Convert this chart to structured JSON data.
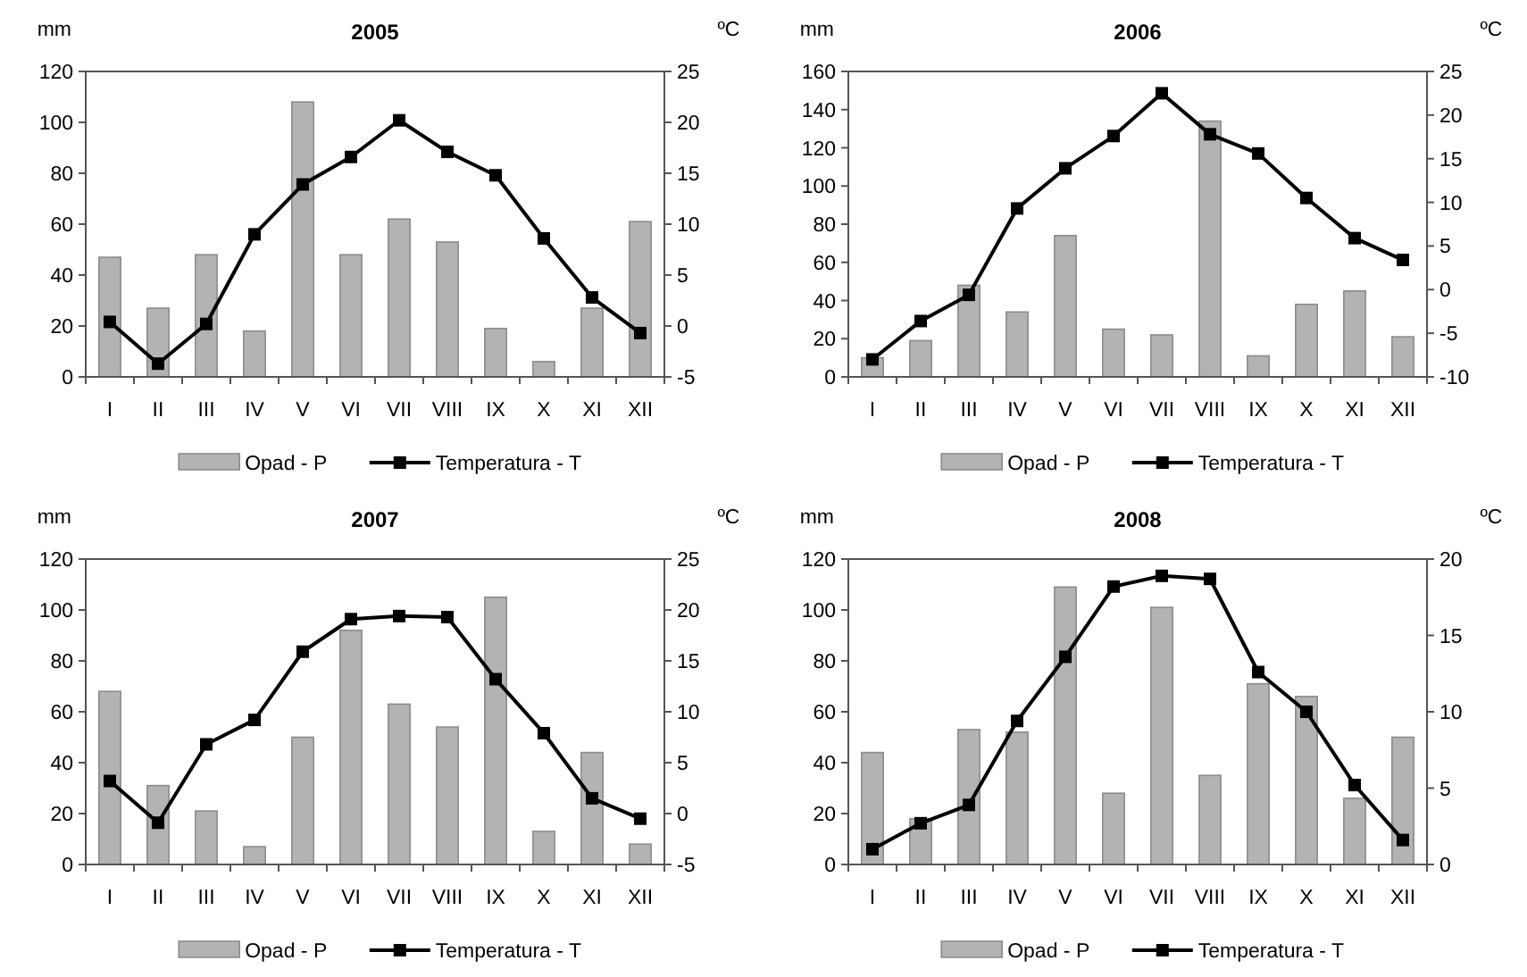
{
  "chart_data": [
    {
      "type": "bar",
      "title": "2005",
      "ylabel": "mm",
      "y2label": "ºC",
      "categories": [
        "I",
        "II",
        "III",
        "IV",
        "V",
        "VI",
        "VII",
        "VIII",
        "IX",
        "X",
        "XI",
        "XII"
      ],
      "ylim": [
        0,
        120
      ],
      "yticks": [
        0,
        20,
        40,
        60,
        80,
        100,
        120
      ],
      "y2lim": [
        -5,
        25
      ],
      "y2ticks": [
        -5,
        0,
        5,
        10,
        15,
        20,
        25
      ],
      "legend": "bottom",
      "grid": false,
      "series": [
        {
          "name": "Opad - P",
          "color": "#b3b3b3",
          "values": [
            47,
            27,
            48,
            18,
            108,
            48,
            62,
            53,
            19,
            6,
            27,
            61
          ]
        },
        {
          "name": "Temperatura - T",
          "type": "line",
          "axis": "y2",
          "color": "#000000",
          "marker": "square",
          "values": [
            0.4,
            -3.7,
            0.2,
            9.0,
            13.9,
            16.6,
            20.2,
            17.1,
            14.8,
            8.6,
            2.8,
            -0.7
          ]
        }
      ]
    },
    {
      "type": "bar",
      "title": "2006",
      "ylabel": "mm",
      "y2label": "ºC",
      "categories": [
        "I",
        "II",
        "III",
        "IV",
        "V",
        "VI",
        "VII",
        "VIII",
        "IX",
        "X",
        "XI",
        "XII"
      ],
      "ylim": [
        0,
        160
      ],
      "yticks": [
        0,
        20,
        40,
        60,
        80,
        100,
        120,
        140,
        160
      ],
      "y2lim": [
        -10,
        25
      ],
      "y2ticks": [
        -10,
        -5,
        0,
        5,
        10,
        15,
        20,
        25
      ],
      "legend": "bottom",
      "grid": false,
      "series": [
        {
          "name": "Opad - P",
          "color": "#b3b3b3",
          "values": [
            10,
            19,
            48,
            34,
            74,
            25,
            22,
            134,
            11,
            38,
            45,
            21
          ]
        },
        {
          "name": "Temperatura - T",
          "type": "line",
          "axis": "y2",
          "color": "#000000",
          "marker": "square",
          "values": [
            -8.0,
            -3.6,
            -0.6,
            9.3,
            13.9,
            17.6,
            22.5,
            17.8,
            15.6,
            10.5,
            5.9,
            3.4
          ]
        }
      ]
    },
    {
      "type": "bar",
      "title": "2007",
      "ylabel": "mm",
      "y2label": "ºC",
      "categories": [
        "I",
        "II",
        "III",
        "IV",
        "V",
        "VI",
        "VII",
        "VIII",
        "IX",
        "X",
        "XI",
        "XII"
      ],
      "ylim": [
        0,
        120
      ],
      "yticks": [
        0,
        20,
        40,
        60,
        80,
        100,
        120
      ],
      "y2lim": [
        -5,
        25
      ],
      "y2ticks": [
        -5,
        0,
        5,
        10,
        15,
        20,
        25
      ],
      "legend": "bottom",
      "grid": false,
      "series": [
        {
          "name": "Opad - P",
          "color": "#b3b3b3",
          "values": [
            68,
            31,
            21,
            7,
            50,
            92,
            63,
            54,
            105,
            13,
            44,
            8
          ]
        },
        {
          "name": "Temperatura - T",
          "type": "line",
          "axis": "y2",
          "color": "#000000",
          "marker": "square",
          "values": [
            3.2,
            -0.9,
            6.8,
            9.2,
            15.9,
            19.1,
            19.4,
            19.3,
            13.2,
            7.9,
            1.5,
            -0.5
          ]
        }
      ]
    },
    {
      "type": "bar",
      "title": "2008",
      "ylabel": "mm",
      "y2label": "ºC",
      "categories": [
        "I",
        "II",
        "III",
        "IV",
        "V",
        "VI",
        "VII",
        "VIII",
        "IX",
        "X",
        "XI",
        "XII"
      ],
      "ylim": [
        0,
        120
      ],
      "yticks": [
        0,
        20,
        40,
        60,
        80,
        100,
        120
      ],
      "y2lim": [
        0,
        20
      ],
      "y2ticks": [
        0,
        5,
        10,
        15,
        20
      ],
      "legend": "bottom",
      "grid": false,
      "series": [
        {
          "name": "Opad - P",
          "color": "#b3b3b3",
          "values": [
            44,
            18,
            53,
            52,
            109,
            28,
            101,
            35,
            71,
            66,
            26,
            50
          ]
        },
        {
          "name": "Temperatura - T",
          "type": "line",
          "axis": "y2",
          "color": "#000000",
          "marker": "square",
          "values": [
            1.0,
            2.7,
            3.9,
            9.4,
            13.6,
            18.2,
            18.9,
            18.7,
            12.6,
            10.0,
            5.2,
            1.6
          ]
        }
      ]
    }
  ]
}
